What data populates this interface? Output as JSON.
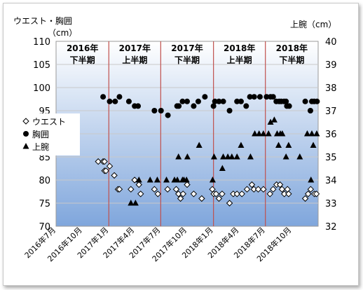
{
  "chart_data": {
    "type": "scatter",
    "left_axis_title": [
      "ウエスト・胸囲",
      "（cm）"
    ],
    "right_axis_title": "上腕（cm）",
    "y_left": {
      "min": 70,
      "max": 110,
      "step": 5,
      "ticks": [
        "70",
        "75",
        "80",
        "85",
        "90",
        "95",
        "100",
        "105",
        "110"
      ]
    },
    "y_right": {
      "min": 32,
      "max": 40,
      "step": 1,
      "ticks": [
        "32",
        "33",
        "34",
        "35",
        "36",
        "37",
        "38",
        "39",
        "40"
      ]
    },
    "x_range": [
      "2016-07-01",
      "2019-01-01"
    ],
    "x_tick_labels": [
      {
        "date": "2016-07-01",
        "label": "2016年7月"
      },
      {
        "date": "2016-10-01",
        "label": "2016年10月"
      },
      {
        "date": "2017-01-01",
        "label": "2017年1月"
      },
      {
        "date": "2017-04-01",
        "label": "2017年4月"
      },
      {
        "date": "2017-07-01",
        "label": "2017年7月"
      },
      {
        "date": "2017-10-01",
        "label": "2017年10月"
      },
      {
        "date": "2018-01-01",
        "label": "2018年1月"
      },
      {
        "date": "2018-04-01",
        "label": "2018年4月"
      },
      {
        "date": "2018-07-01",
        "label": "2018年7月"
      },
      {
        "date": "2018-10-01",
        "label": "2018年10月"
      }
    ],
    "period_dividers": [
      "2017-01-01",
      "2017-07-01",
      "2018-01-01",
      "2018-07-01"
    ],
    "periods": [
      {
        "line1": "2016年",
        "line2": "下半期",
        "start": "2016-07-01",
        "end": "2017-01-01"
      },
      {
        "line1": "2017年",
        "line2": "上半期",
        "start": "2017-01-01",
        "end": "2017-07-01"
      },
      {
        "line1": "2017年",
        "line2": "下半期",
        "start": "2017-07-01",
        "end": "2018-01-01"
      },
      {
        "line1": "2018年",
        "line2": "上半期",
        "start": "2018-01-01",
        "end": "2018-07-01"
      },
      {
        "line1": "2018年",
        "line2": "下半期",
        "start": "2018-07-01",
        "end": "2019-01-01"
      }
    ],
    "colors": {
      "plot_gradient_top": "#ffffff",
      "plot_gradient_bottom": "#7fa6dc",
      "divider": "#c0504d",
      "marker": "#000000"
    },
    "series": [
      {
        "name": "ウエスト",
        "marker": "diamond-open",
        "axis": "left",
        "points": [
          [
            "2016-11-25",
            84
          ],
          [
            "2016-12-12",
            84
          ],
          [
            "2016-12-17",
            84
          ],
          [
            "2016-12-17",
            82
          ],
          [
            "2016-12-22",
            82
          ],
          [
            "2017-01-04",
            83
          ],
          [
            "2017-01-20",
            81
          ],
          [
            "2017-02-02",
            78
          ],
          [
            "2017-02-07",
            78
          ],
          [
            "2017-03-19",
            78
          ],
          [
            "2017-04-01",
            80
          ],
          [
            "2017-04-16",
            79
          ],
          [
            "2017-04-22",
            77
          ],
          [
            "2017-06-09",
            78
          ],
          [
            "2017-06-21",
            77
          ],
          [
            "2017-07-25",
            78
          ],
          [
            "2017-08-24",
            78
          ],
          [
            "2017-09-01",
            77
          ],
          [
            "2017-09-08",
            76
          ],
          [
            "2017-09-17",
            77
          ],
          [
            "2017-10-01",
            79
          ],
          [
            "2017-10-24",
            77
          ],
          [
            "2017-11-21",
            76
          ],
          [
            "2017-12-28",
            78
          ],
          [
            "2018-01-02",
            77
          ],
          [
            "2018-01-10",
            77
          ],
          [
            "2018-01-20",
            76
          ],
          [
            "2018-01-31",
            77
          ],
          [
            "2018-02-26",
            75
          ],
          [
            "2018-03-11",
            77
          ],
          [
            "2018-03-24",
            77
          ],
          [
            "2018-04-10",
            77
          ],
          [
            "2018-04-28",
            78
          ],
          [
            "2018-05-15",
            79
          ],
          [
            "2018-05-22",
            78
          ],
          [
            "2018-06-06",
            78
          ],
          [
            "2018-06-24",
            78
          ],
          [
            "2018-07-17",
            77
          ],
          [
            "2018-07-28",
            78
          ],
          [
            "2018-08-09",
            79
          ],
          [
            "2018-08-21",
            79
          ],
          [
            "2018-08-28",
            78
          ],
          [
            "2018-09-05",
            77
          ],
          [
            "2018-09-16",
            78
          ],
          [
            "2018-09-20",
            77
          ],
          [
            "2018-11-17",
            76
          ],
          [
            "2018-11-27",
            77
          ],
          [
            "2018-12-06",
            78
          ],
          [
            "2018-12-19",
            77
          ],
          [
            "2018-12-26",
            77
          ]
        ]
      },
      {
        "name": "胸囲",
        "marker": "circle-filled",
        "axis": "left",
        "points": [
          [
            "2016-12-12",
            98
          ],
          [
            "2017-01-04",
            97
          ],
          [
            "2017-01-23",
            97
          ],
          [
            "2017-02-07",
            98
          ],
          [
            "2017-03-12",
            97
          ],
          [
            "2017-04-01",
            96
          ],
          [
            "2017-04-13",
            96
          ],
          [
            "2017-06-09",
            95
          ],
          [
            "2017-07-02",
            95
          ],
          [
            "2017-07-26",
            94
          ],
          [
            "2017-08-27",
            96
          ],
          [
            "2017-09-02",
            96
          ],
          [
            "2017-09-15",
            97
          ],
          [
            "2017-10-01",
            97
          ],
          [
            "2017-10-24",
            96
          ],
          [
            "2017-11-09",
            97
          ],
          [
            "2017-12-02",
            98
          ],
          [
            "2018-01-01",
            96
          ],
          [
            "2018-01-06",
            97
          ],
          [
            "2018-01-20",
            97
          ],
          [
            "2018-02-04",
            97
          ],
          [
            "2018-02-26",
            95
          ],
          [
            "2018-03-24",
            97
          ],
          [
            "2018-04-07",
            97
          ],
          [
            "2018-04-25",
            96
          ],
          [
            "2018-05-08",
            98
          ],
          [
            "2018-05-23",
            98
          ],
          [
            "2018-06-12",
            98
          ],
          [
            "2018-07-05",
            98
          ],
          [
            "2018-07-19",
            98
          ],
          [
            "2018-07-28",
            98
          ],
          [
            "2018-08-08",
            97
          ],
          [
            "2018-08-18",
            97
          ],
          [
            "2018-08-25",
            97
          ],
          [
            "2018-09-04",
            97
          ],
          [
            "2018-09-11",
            97
          ],
          [
            "2018-09-14",
            96
          ],
          [
            "2018-09-22",
            96
          ],
          [
            "2018-11-17",
            97
          ],
          [
            "2018-12-05",
            95
          ],
          [
            "2018-12-10",
            97
          ],
          [
            "2018-12-18",
            97
          ],
          [
            "2018-12-28",
            97
          ]
        ]
      },
      {
        "name": "上腕",
        "marker": "triangle-filled",
        "axis": "right",
        "points": [
          [
            "2017-03-19",
            33
          ],
          [
            "2017-04-04",
            33
          ],
          [
            "2017-04-16",
            34
          ],
          [
            "2017-05-25",
            34
          ],
          [
            "2017-06-19",
            34
          ],
          [
            "2017-07-21",
            34
          ],
          [
            "2017-08-18",
            34
          ],
          [
            "2017-08-28",
            34
          ],
          [
            "2017-09-15",
            34
          ],
          [
            "2017-09-20",
            34
          ],
          [
            "2017-09-29",
            34
          ],
          [
            "2017-09-01",
            35
          ],
          [
            "2017-10-02",
            35
          ],
          [
            "2017-11-12",
            35.5
          ],
          [
            "2017-12-29",
            34
          ],
          [
            "2018-01-03",
            35
          ],
          [
            "2018-02-01",
            34.5
          ],
          [
            "2018-02-04",
            35
          ],
          [
            "2018-02-20",
            35
          ],
          [
            "2018-03-06",
            35
          ],
          [
            "2018-03-24",
            35
          ],
          [
            "2018-04-07",
            35.5
          ],
          [
            "2018-05-10",
            35
          ],
          [
            "2018-05-25",
            36
          ],
          [
            "2018-06-09",
            36
          ],
          [
            "2018-06-24",
            36
          ],
          [
            "2018-07-12",
            36
          ],
          [
            "2018-07-19",
            36.5
          ],
          [
            "2018-08-01",
            36.6
          ],
          [
            "2018-08-11",
            36
          ],
          [
            "2018-08-16",
            35.5
          ],
          [
            "2018-08-22",
            36
          ],
          [
            "2018-08-29",
            36
          ],
          [
            "2018-09-11",
            35
          ],
          [
            "2018-09-20",
            35.5
          ],
          [
            "2018-10-29",
            35
          ],
          [
            "2018-11-24",
            36
          ],
          [
            "2018-12-07",
            34
          ],
          [
            "2018-12-10",
            36
          ],
          [
            "2018-12-15",
            35.5
          ],
          [
            "2018-12-27",
            36
          ]
        ]
      }
    ],
    "legend": {
      "position": "left",
      "items": [
        {
          "label": "ウエスト",
          "marker": "diamond-open"
        },
        {
          "label": "胸囲",
          "marker": "circle-filled"
        },
        {
          "label": "上腕",
          "marker": "triangle-filled"
        }
      ]
    }
  }
}
